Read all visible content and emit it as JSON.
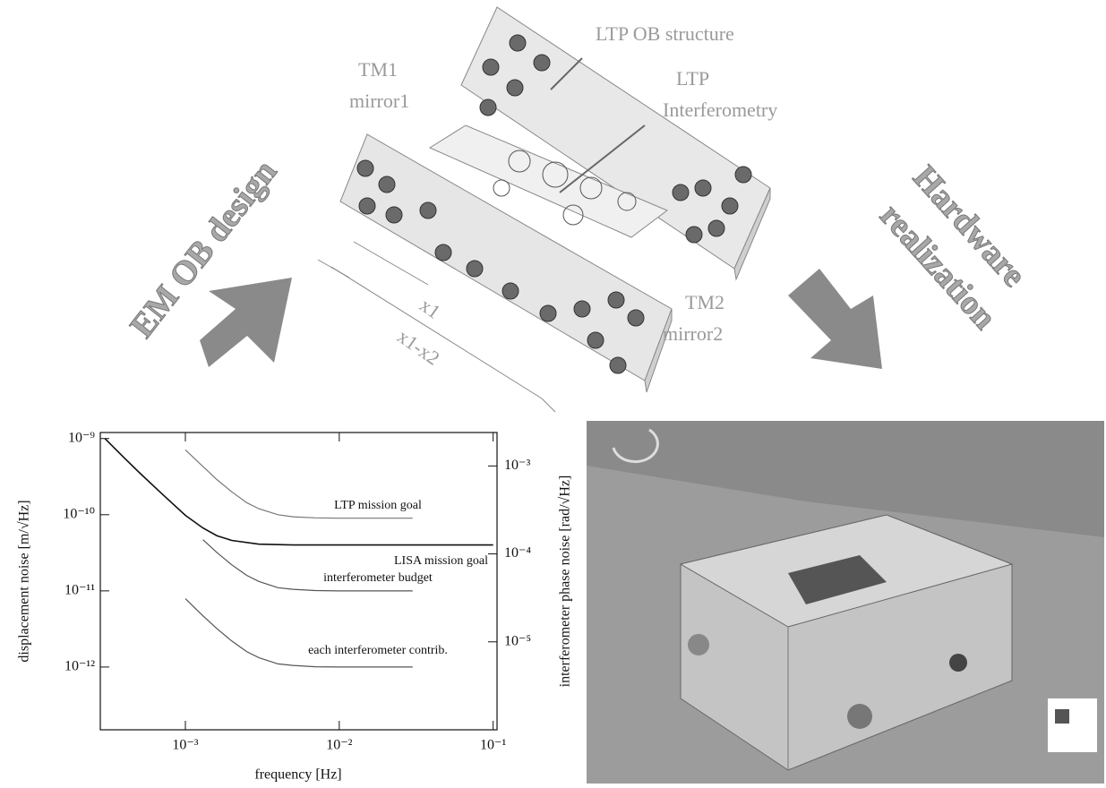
{
  "diagram": {
    "ob_structure": "LTP OB structure",
    "tm1": [
      "TM1",
      "mirror1"
    ],
    "interferometry": [
      "LTP",
      "Interferometry"
    ],
    "em_design": "EM OB design",
    "hardware": [
      "Hardware",
      "realization"
    ],
    "x1": "x1",
    "x1x2": "x1-x2",
    "tm2": [
      "TM2",
      "mirror2"
    ]
  },
  "chart_data": {
    "type": "line",
    "xlog": true,
    "ylog": true,
    "xlabel": "frequency [Hz]",
    "ylabel": "displacement noise [m/√Hz]",
    "y2label": "interferometer phase noise [rad/√Hz]",
    "xlim": [
      0.00028,
      0.106
    ],
    "ylim": [
      1.5e-13,
      1.2e-09
    ],
    "y2lim": [
      1e-06,
      0.0024
    ],
    "xticks": [
      {
        "value": 0.001,
        "label": "10⁻³"
      },
      {
        "value": 0.01,
        "label": "10⁻²"
      },
      {
        "value": 0.1,
        "label": "10⁻¹"
      }
    ],
    "yticks": [
      {
        "value": 1e-12,
        "label": "10⁻¹²"
      },
      {
        "value": 1e-11,
        "label": "10⁻¹¹"
      },
      {
        "value": 1e-10,
        "label": "10⁻¹⁰"
      },
      {
        "value": 1e-09,
        "label": "10⁻⁹"
      }
    ],
    "y2ticks": [
      {
        "value": 1e-05,
        "label": "10⁻⁵"
      },
      {
        "value": 0.0001,
        "label": "10⁻⁴"
      },
      {
        "value": 0.001,
        "label": "10⁻³"
      }
    ],
    "series": [
      {
        "name": "LISA mission goal",
        "color": "#111111",
        "x": [
          0.0003,
          0.0004,
          0.0005,
          0.0007,
          0.001,
          0.0013,
          0.0016,
          0.002,
          0.003,
          0.005,
          0.01,
          0.03,
          0.1
        ],
        "values": [
          1e-09,
          5.6e-10,
          3.6e-10,
          1.9e-10,
          9.8e-11,
          6.7e-11,
          5.3e-11,
          4.6e-11,
          4.1e-11,
          4e-11,
          4e-11,
          4e-11,
          4e-11
        ]
      },
      {
        "name": "LTP mission goal",
        "color": "#777777",
        "x": [
          0.001,
          0.0013,
          0.0016,
          0.002,
          0.0025,
          0.003,
          0.004,
          0.005,
          0.007,
          0.01,
          0.02,
          0.03
        ],
        "values": [
          7.1e-10,
          4.3e-10,
          2.9e-10,
          2e-10,
          1.44e-10,
          1.2e-10,
          1e-10,
          9.4e-11,
          9.1e-11,
          9e-11,
          9e-11,
          9e-11
        ]
      },
      {
        "name": "interferometer budget",
        "color": "#555555",
        "x": [
          0.0013,
          0.0016,
          0.002,
          0.0025,
          0.003,
          0.004,
          0.005,
          0.007,
          0.01,
          0.02,
          0.03
        ],
        "values": [
          4.7e-11,
          3.2e-11,
          2.2e-11,
          1.6e-11,
          1.33e-11,
          1.1e-11,
          1.05e-11,
          1.01e-11,
          1e-11,
          1e-11,
          1e-11
        ]
      },
      {
        "name": "each interferometer contrib.",
        "color": "#555555",
        "x": [
          0.001,
          0.0013,
          0.0016,
          0.002,
          0.0025,
          0.003,
          0.004,
          0.005,
          0.007,
          0.01,
          0.02,
          0.03
        ],
        "values": [
          7.9e-12,
          4.7e-12,
          3.2e-12,
          2.2e-12,
          1.6e-12,
          1.33e-12,
          1.1e-12,
          1.05e-12,
          1.01e-12,
          1e-12,
          1e-12,
          1e-12
        ]
      }
    ]
  }
}
